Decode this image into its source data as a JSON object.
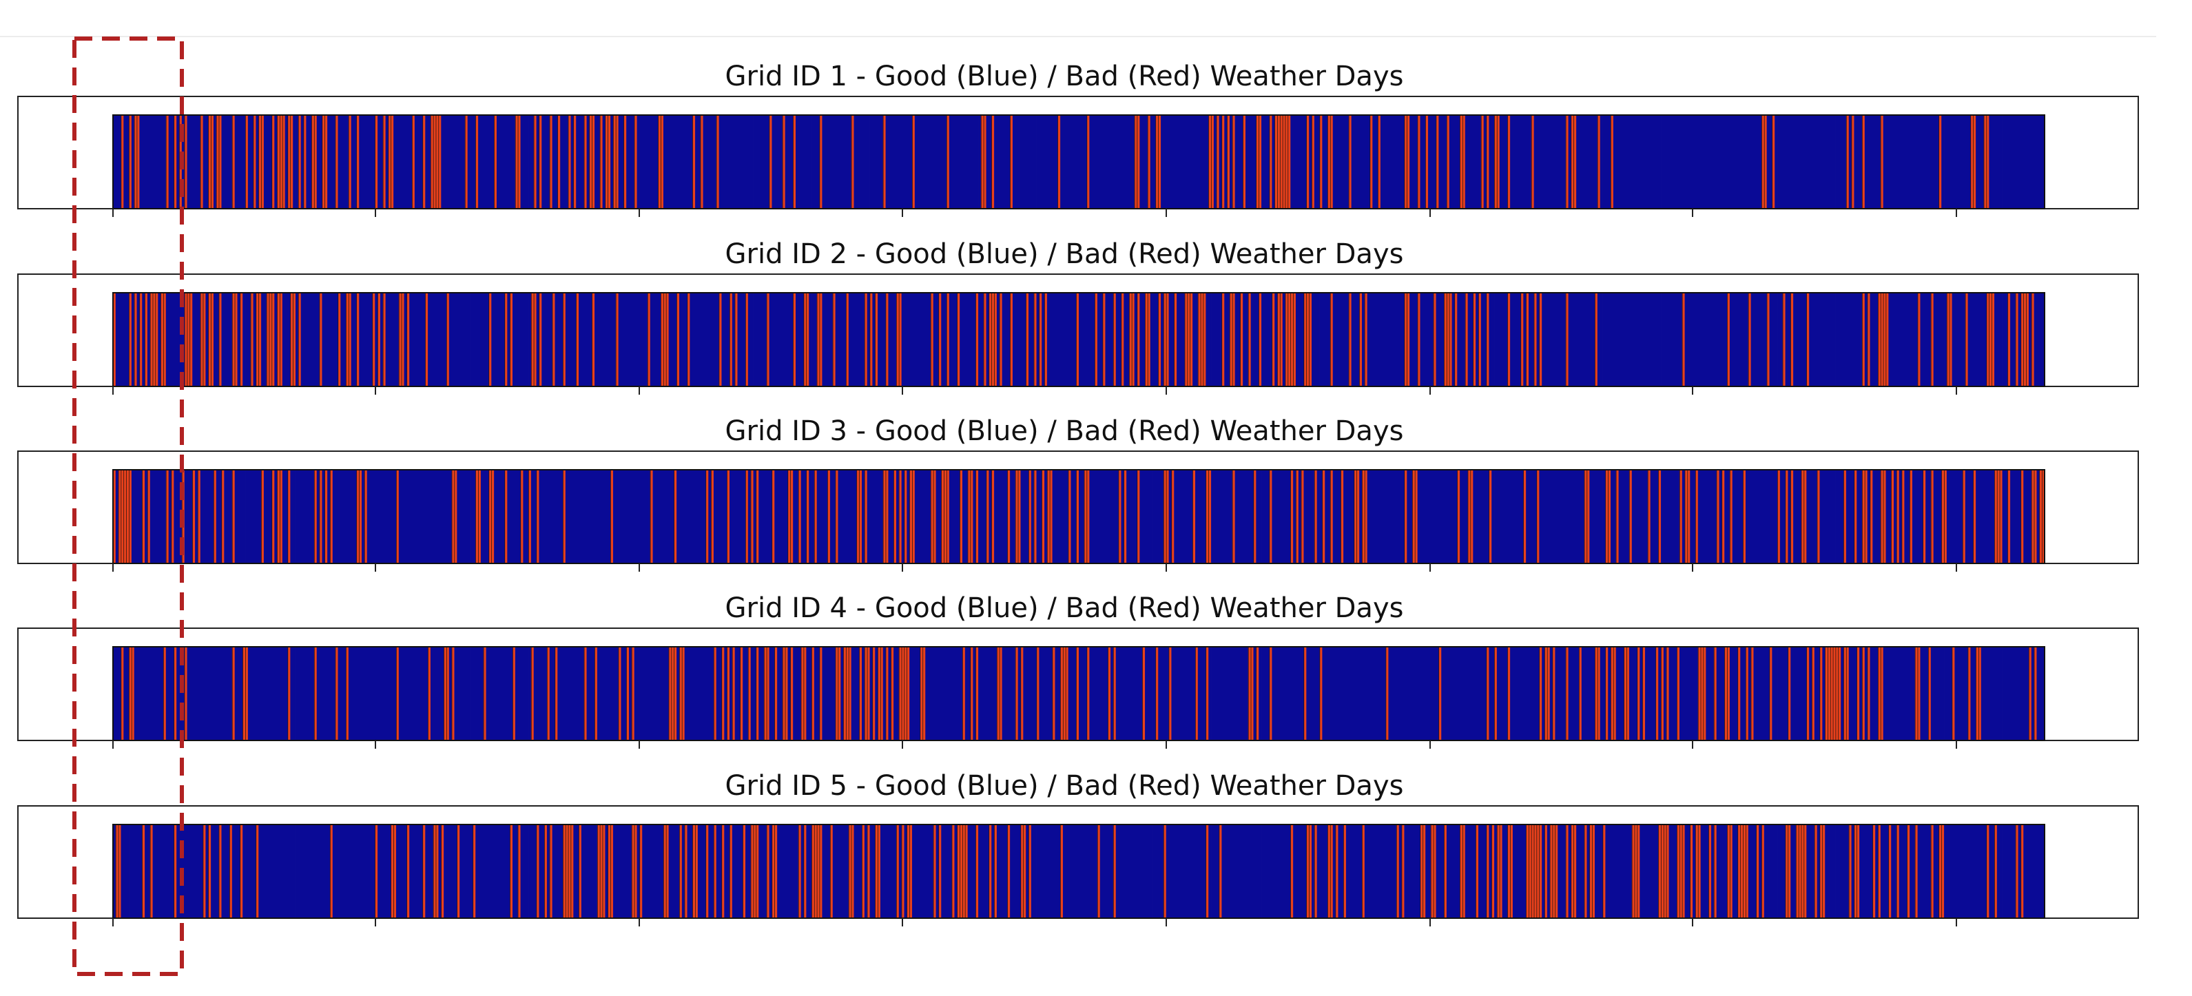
{
  "chart_data": [
    {
      "type": "bar",
      "title": "Grid ID 1 - Good (Blue) / Bad (Red) Weather Days",
      "seed": 11,
      "categories": [
        "Good",
        "Bad"
      ],
      "xlabel": "",
      "ylabel": "",
      "xlim": [
        0,
        730
      ],
      "grid": false
    },
    {
      "type": "bar",
      "title": "Grid ID 2 - Good (Blue) / Bad (Red) Weather Days",
      "seed": 23,
      "categories": [
        "Good",
        "Bad"
      ],
      "xlabel": "",
      "ylabel": "",
      "xlim": [
        0,
        730
      ],
      "grid": false
    },
    {
      "type": "bar",
      "title": "Grid ID 3 - Good (Blue) / Bad (Red) Weather Days",
      "seed": 37,
      "categories": [
        "Good",
        "Bad"
      ],
      "xlabel": "",
      "ylabel": "",
      "xlim": [
        0,
        730
      ],
      "grid": false
    },
    {
      "type": "bar",
      "title": "Grid ID 4 - Good (Blue) / Bad (Red) Weather Days",
      "seed": 41,
      "categories": [
        "Good",
        "Bad"
      ],
      "xlabel": "",
      "ylabel": "",
      "xlim": [
        0,
        730
      ],
      "grid": false
    },
    {
      "type": "bar",
      "title": "Grid ID 5 - Good (Blue) / Bad (Red) Weather Days",
      "seed": 53,
      "categories": [
        "Good",
        "Bad"
      ],
      "xlabel": "",
      "ylabel": "",
      "xlim": [
        0,
        730
      ],
      "grid": false
    }
  ],
  "colors": {
    "good": "#0a0a96",
    "bad": "#e8401c",
    "edge": "#111111",
    "highlight": "#b22222"
  }
}
